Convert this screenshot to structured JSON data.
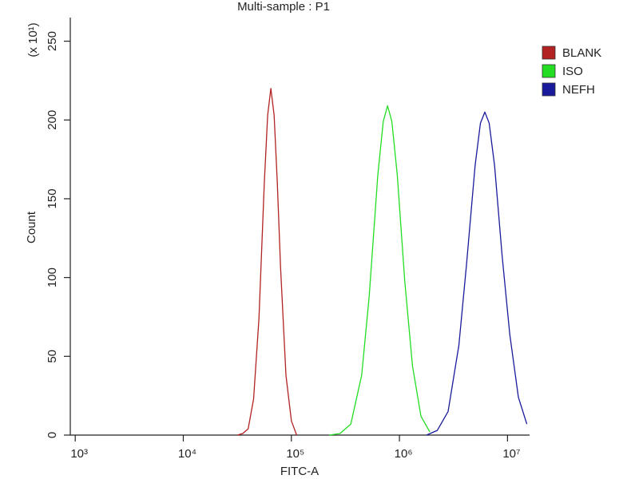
{
  "chart_data": {
    "type": "line",
    "title": "Multi-sample : P1",
    "x_label": "FITC-A",
    "y_label": "Count",
    "y_multiplier": "(x 10¹)",
    "xscale": "log",
    "xlim": [
      900,
      16000000
    ],
    "xticks": [
      {
        "value": 1000,
        "label": "10³"
      },
      {
        "value": 10000,
        "label": "10⁴"
      },
      {
        "value": 100000,
        "label": "10⁵"
      },
      {
        "value": 1000000,
        "label": "10⁶"
      },
      {
        "value": 10000000,
        "label": "10⁷"
      }
    ],
    "ylim": [
      0,
      265
    ],
    "yticks": [
      0,
      50,
      100,
      150,
      200,
      250
    ],
    "legend": "right",
    "series": [
      {
        "name": "BLANK",
        "color": "#b22222",
        "x": [
          31600,
          35500,
          39800,
          44700,
          50100,
          56200,
          60300,
          64600,
          69200,
          74100,
          79400,
          89100,
          100000,
          112000
        ],
        "values": [
          0,
          1,
          4,
          23,
          74,
          160,
          203,
          220,
          203,
          160,
          107,
          38,
          9,
          0
        ]
      },
      {
        "name": "ISO",
        "color": "#22dd22",
        "x": [
          224000,
          282000,
          355000,
          447000,
          525000,
          631000,
          708000,
          776000,
          851000,
          955000,
          1120000,
          1320000,
          1580000,
          1910000
        ],
        "values": [
          0,
          1,
          7,
          38,
          88,
          165,
          199,
          209,
          199,
          165,
          98,
          44,
          12,
          2
        ]
      },
      {
        "name": "NEFH",
        "color": "#1a1a9c",
        "x": [
          1780000,
          2240000,
          2820000,
          3550000,
          4170000,
          5010000,
          5620000,
          6170000,
          6760000,
          7590000,
          8910000,
          10500000,
          12600000,
          15100000
        ],
        "values": [
          0,
          3,
          15,
          57,
          108,
          171,
          198,
          205,
          198,
          171,
          114,
          64,
          24,
          7
        ]
      }
    ]
  }
}
